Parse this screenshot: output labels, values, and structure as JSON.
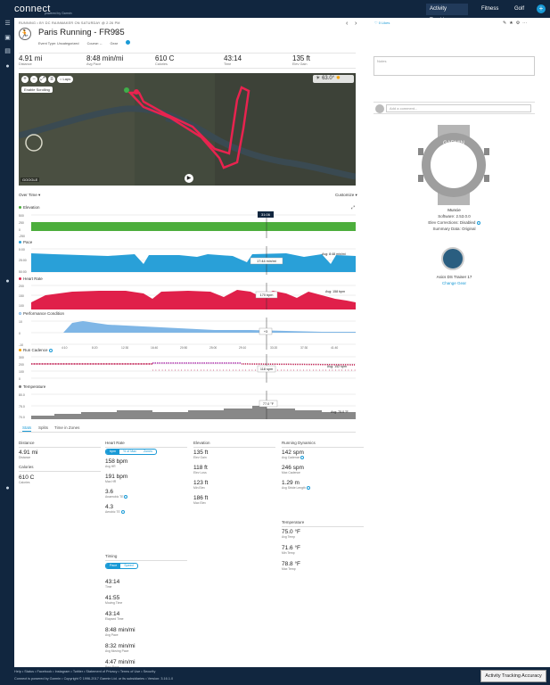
{
  "app": {
    "logo": "connect",
    "logo_sub": "powered by Garmin"
  },
  "topnav": {
    "activity_tracking": "Activity Tracking",
    "fitness": "Fitness",
    "golf": "Golf",
    "add": "+"
  },
  "activity": {
    "breadcrumb": "RUNNING  •  BY DC RAINMAKER ON SATURDAY @ 2:26 PM",
    "title": "Paris Running - FR935",
    "event_type": "Event Type: Uncategorized",
    "course": "Course: --",
    "gear": "Gear",
    "likes": "0 Likes"
  },
  "summary": [
    {
      "value": "4.91 mi",
      "label": "Distance"
    },
    {
      "value": "8:48 min/mi",
      "label": "Avg Pace"
    },
    {
      "value": "610 C",
      "label": "Calories"
    },
    {
      "value": "43:14",
      "label": "Time"
    },
    {
      "value": "135 ft",
      "label": "Elev Gain"
    }
  ],
  "map": {
    "laps": "Laps",
    "enable_scroll": "Enable Scrolling",
    "weather": "63.0°",
    "brand": "GOOGLE"
  },
  "charts": {
    "over_time": "Over Time",
    "customize": "Customize",
    "elevation": {
      "label": "Elevation",
      "color": "#4cae3c",
      "ticks": [
        "500",
        "250",
        "0",
        "-250"
      ],
      "marker": "31:06"
    },
    "pace": {
      "label": "Pace",
      "color": "#29a0d8",
      "ticks": [
        "0:00",
        "25:00",
        "50:00"
      ],
      "cursor": "17:44 min/mi",
      "avg": "Avg: 8:48 min/mi"
    },
    "heart_rate": {
      "label": "Heart Rate",
      "color": "#e0204a",
      "ticks": [
        "200",
        "150",
        "100"
      ],
      "cursor": "170 bpm",
      "avg": "Avg: 158 bpm"
    },
    "performance": {
      "label": "Performance Condition",
      "color": "#7fb6e6",
      "ticks": [
        "10",
        "0",
        "-10"
      ],
      "cursor": "+3"
    },
    "cadence": {
      "label": "Run Cadence",
      "color": "#c0144a",
      "ticks": [
        "300",
        "200",
        "100",
        "0"
      ],
      "cursor": "118 spm",
      "avg": "Avg: 142 spm"
    },
    "temperature": {
      "label": "Temperature",
      "color": "#777777",
      "ticks": [
        "80.0",
        "75.0",
        "70.0"
      ],
      "cursor": "77.0 °F",
      "avg": "Avg: 75.0 °F"
    },
    "time_ticks": [
      "4:10",
      "8:20",
      "12:30",
      "16:40",
      "20:50",
      "25:00",
      "29:10",
      "33:20",
      "37:30",
      "41:40"
    ]
  },
  "tabs": {
    "stats": "Stats",
    "splits": "Splits",
    "zones": "Time in Zones"
  },
  "stats": {
    "distance": {
      "header": "Distance",
      "value": "4.91 mi",
      "label": "Distance"
    },
    "calories": {
      "header": "Calories",
      "value": "610 C",
      "label": "Calories"
    },
    "heart": {
      "header": "Heart Rate",
      "toggle": [
        "bpm",
        "% of Max",
        "Zones"
      ],
      "items": [
        {
          "value": "158 bpm",
          "label": "Avg HR"
        },
        {
          "value": "191 bpm",
          "label": "Max HR"
        },
        {
          "value": "3.6",
          "label": "Anaerobic TE"
        },
        {
          "value": "4.3",
          "label": "Aerobic TE"
        }
      ]
    },
    "timing": {
      "header": "Timing",
      "toggle": [
        "Pace",
        "Speed"
      ],
      "items": [
        {
          "value": "43:14",
          "label": "Time"
        },
        {
          "value": "41:55",
          "label": "Moving Time"
        },
        {
          "value": "43:14",
          "label": "Elapsed Time"
        },
        {
          "value": "8:48 min/mi",
          "label": "Avg Pace"
        },
        {
          "value": "8:32 min/mi",
          "label": "Avg Moving Pace"
        },
        {
          "value": "4:47 min/mi",
          "label": "Best Pace"
        }
      ]
    },
    "elevation": {
      "header": "Elevation",
      "items": [
        {
          "value": "135 ft",
          "label": "Elev Gain"
        },
        {
          "value": "118 ft",
          "label": "Elev Loss"
        },
        {
          "value": "123 ft",
          "label": "Min Elev"
        },
        {
          "value": "186 ft",
          "label": "Max Elev"
        }
      ]
    },
    "dynamics": {
      "header": "Running Dynamics",
      "items": [
        {
          "value": "142 spm",
          "label": "Avg Cadence"
        },
        {
          "value": "246 spm",
          "label": "Max Cadence"
        },
        {
          "value": "1.29 m",
          "label": "Avg Stride Length"
        }
      ]
    },
    "temperature": {
      "header": "Temperature",
      "items": [
        {
          "value": "75.0 °F",
          "label": "Avg Temp"
        },
        {
          "value": "71.6 °F",
          "label": "Min Temp"
        },
        {
          "value": "78.8 °F",
          "label": "Max Temp"
        }
      ]
    }
  },
  "right": {
    "notes_placeholder": "Notes",
    "comment_placeholder": "Add a comment...",
    "watch_brand": "GARMIN",
    "device_name": "Muncie",
    "software": "Software: 2.53.0.0",
    "elev_corrections": "Elev Corrections: Disabled",
    "summary_data": "Summary Data: Original",
    "shoe": "Asics DS Trainer 17",
    "change_gear": "Change Gear"
  },
  "footer": {
    "links": "Help • Status • Facebook • Instagram • Twitter • Statement of Privacy • Terms of Use • Security",
    "copy": "Connect is powered by Garmin • Copyright © 1996-2017 Garmin Ltd. or its subsidiaries • Version: 3.16.1.0",
    "feedback": "Activity Tracking Accuracy"
  }
}
